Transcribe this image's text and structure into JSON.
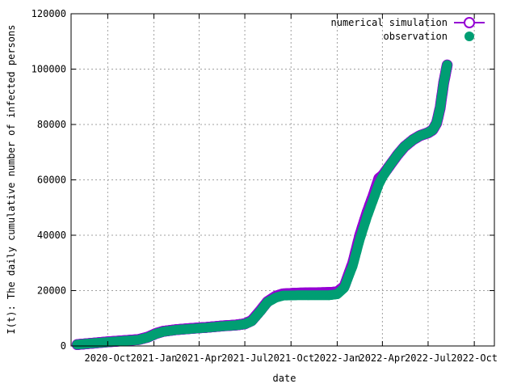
{
  "chart_data": {
    "type": "line",
    "xlabel": "date",
    "ylabel": "I(t): The daily cumulative number of infected persons",
    "ylim": [
      0,
      120000
    ],
    "xlim": [
      "2020-07-20",
      "2022-11-10"
    ],
    "grid": true,
    "legend_position": "top-right",
    "y_ticks": [
      0,
      20000,
      40000,
      60000,
      80000,
      100000,
      120000
    ],
    "y_tick_labels": [
      "0",
      "20000",
      "40000",
      "60000",
      "80000",
      "100000",
      "120000"
    ],
    "x_ticks": [
      "2020-10-01",
      "2021-01-01",
      "2021-04-01",
      "2021-07-01",
      "2021-10-01",
      "2022-01-01",
      "2022-04-01",
      "2022-07-01",
      "2022-10-01"
    ],
    "x_tick_labels": [
      "2020-Oct",
      "2021-Jan",
      "2021-Apr",
      "2021-Jul",
      "2021-Oct",
      "2022-Jan",
      "2022-Apr",
      "2022-Jul",
      "2022-Oct"
    ],
    "series": [
      {
        "name": "numerical simulation",
        "color": "#9400d3",
        "marker": "open-circle",
        "points": [
          [
            "2020-08-01",
            500
          ],
          [
            "2020-09-01",
            1000
          ],
          [
            "2020-10-01",
            1500
          ],
          [
            "2020-11-01",
            1900
          ],
          [
            "2020-12-01",
            2300
          ],
          [
            "2020-12-20",
            3200
          ],
          [
            "2021-01-05",
            4500
          ],
          [
            "2021-01-20",
            5300
          ],
          [
            "2021-02-15",
            5900
          ],
          [
            "2021-03-15",
            6300
          ],
          [
            "2021-04-15",
            6700
          ],
          [
            "2021-05-15",
            7200
          ],
          [
            "2021-06-15",
            7600
          ],
          [
            "2021-07-01",
            8000
          ],
          [
            "2021-07-15",
            9200
          ],
          [
            "2021-08-01",
            12800
          ],
          [
            "2021-08-15",
            16000
          ],
          [
            "2021-09-01",
            18000
          ],
          [
            "2021-09-15",
            18800
          ],
          [
            "2021-10-15",
            19100
          ],
          [
            "2021-11-15",
            19200
          ],
          [
            "2021-12-15",
            19300
          ],
          [
            "2022-01-01",
            19500
          ],
          [
            "2022-01-15",
            21500
          ],
          [
            "2022-02-01",
            30000
          ],
          [
            "2022-02-15",
            40000
          ],
          [
            "2022-03-01",
            48000
          ],
          [
            "2022-03-15",
            55000
          ],
          [
            "2022-03-25",
            60500
          ],
          [
            "2022-04-01",
            61500
          ],
          [
            "2022-04-15",
            65000
          ],
          [
            "2022-05-01",
            69000
          ],
          [
            "2022-05-15",
            72000
          ],
          [
            "2022-06-01",
            74500
          ],
          [
            "2022-06-15",
            76000
          ],
          [
            "2022-07-01",
            77000
          ],
          [
            "2022-07-10",
            78000
          ],
          [
            "2022-07-18",
            80500
          ],
          [
            "2022-07-25",
            86000
          ],
          [
            "2022-08-01",
            95000
          ],
          [
            "2022-08-08",
            101500
          ]
        ]
      },
      {
        "name": "observation",
        "color": "#009e73",
        "marker": "filled-circle",
        "points": [
          [
            "2020-08-01",
            500
          ],
          [
            "2020-09-01",
            1000
          ],
          [
            "2020-10-01",
            1400
          ],
          [
            "2020-11-01",
            1800
          ],
          [
            "2020-12-01",
            2200
          ],
          [
            "2020-12-20",
            3100
          ],
          [
            "2021-01-05",
            4400
          ],
          [
            "2021-01-20",
            5200
          ],
          [
            "2021-02-15",
            5800
          ],
          [
            "2021-03-15",
            6200
          ],
          [
            "2021-04-15",
            6600
          ],
          [
            "2021-05-15",
            7100
          ],
          [
            "2021-06-15",
            7500
          ],
          [
            "2021-07-01",
            7900
          ],
          [
            "2021-07-15",
            9000
          ],
          [
            "2021-08-01",
            12500
          ],
          [
            "2021-08-15",
            15800
          ],
          [
            "2021-09-01",
            17500
          ],
          [
            "2021-09-15",
            18200
          ],
          [
            "2021-10-15",
            18300
          ],
          [
            "2021-11-15",
            18300
          ],
          [
            "2021-12-15",
            18300
          ],
          [
            "2022-01-01",
            18700
          ],
          [
            "2022-01-15",
            21000
          ],
          [
            "2022-02-01",
            29000
          ],
          [
            "2022-02-15",
            38500
          ],
          [
            "2022-03-01",
            46500
          ],
          [
            "2022-03-15",
            53500
          ],
          [
            "2022-03-25",
            58500
          ],
          [
            "2022-04-01",
            61000
          ],
          [
            "2022-04-15",
            65000
          ],
          [
            "2022-05-01",
            69000
          ],
          [
            "2022-05-15",
            72000
          ],
          [
            "2022-06-01",
            74500
          ],
          [
            "2022-06-15",
            76000
          ],
          [
            "2022-07-01",
            77000
          ],
          [
            "2022-07-10",
            78000
          ],
          [
            "2022-07-18",
            80500
          ],
          [
            "2022-07-25",
            86000
          ],
          [
            "2022-08-01",
            95000
          ],
          [
            "2022-08-08",
            101500
          ]
        ]
      }
    ]
  }
}
